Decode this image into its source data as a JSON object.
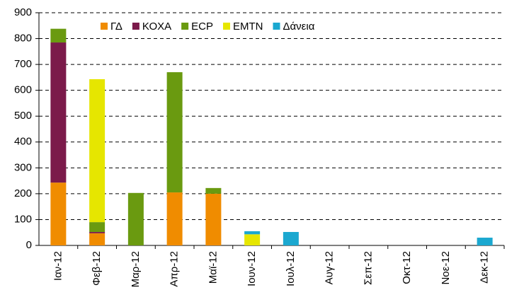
{
  "chart_data": {
    "type": "stacked_bar",
    "categories": [
      "Ιαν-12",
      "Φεβ-12",
      "Μαρ-12",
      "Απρ-12",
      "Μαϊ-12",
      "Ιουν-12",
      "Ιουλ-12",
      "Αυγ-12",
      "Σεπ-12",
      "Οκτ-12",
      "Νοε-12",
      "Δεκ-12"
    ],
    "series": [
      {
        "name": "ΓΔ",
        "color": "#f08c00",
        "values": [
          243,
          47,
          0,
          205,
          200,
          0,
          0,
          0,
          0,
          0,
          0,
          0
        ]
      },
      {
        "name": "ΚΟΧΑ",
        "color": "#7b1a4a",
        "values": [
          542,
          5,
          0,
          0,
          0,
          0,
          0,
          0,
          0,
          0,
          0,
          0
        ]
      },
      {
        "name": "ECP",
        "color": "#6a9a10",
        "values": [
          53,
          38,
          203,
          465,
          22,
          0,
          0,
          0,
          0,
          0,
          0,
          0
        ]
      },
      {
        "name": "EMTN",
        "color": "#e6e600",
        "values": [
          0,
          553,
          0,
          0,
          0,
          43,
          0,
          0,
          0,
          0,
          0,
          0
        ]
      },
      {
        "name": "Δάνεια",
        "color": "#1ba8d0",
        "values": [
          0,
          0,
          0,
          0,
          0,
          12,
          52,
          0,
          0,
          0,
          0,
          30
        ]
      }
    ],
    "ylim": [
      0,
      900
    ],
    "yticks": [
      0,
      100,
      200,
      300,
      400,
      500,
      600,
      700,
      800,
      900
    ],
    "grid": true,
    "legend": "top"
  }
}
